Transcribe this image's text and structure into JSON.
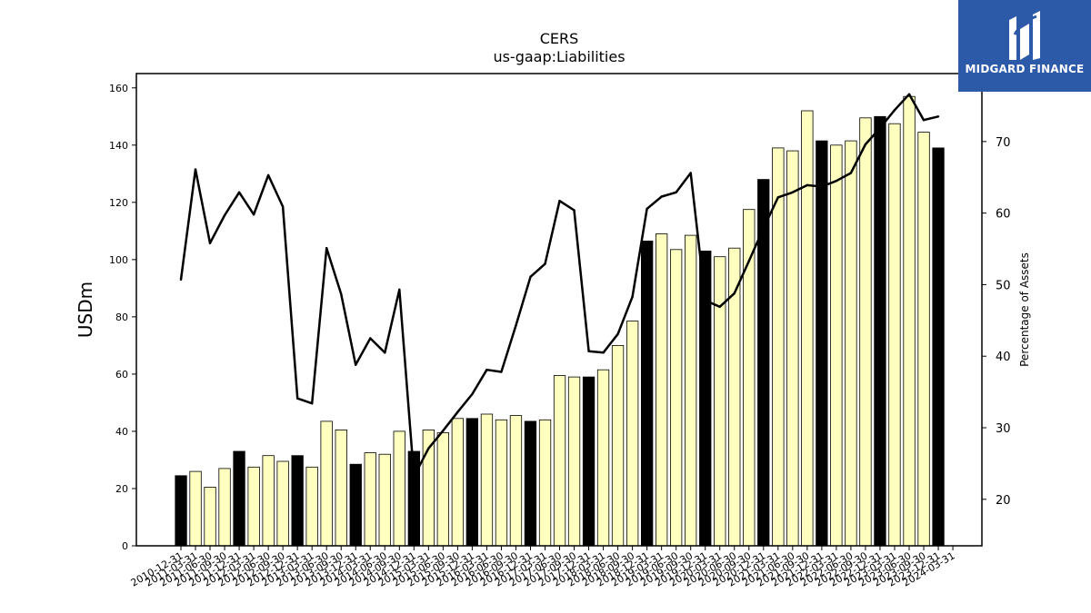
{
  "brand": {
    "name": "MIDGARD FINANCE",
    "logo_icon": "midgard-m-logo-icon",
    "background": "#2d5aa8"
  },
  "chart_data": {
    "type": "bar",
    "title": "CERS",
    "subtitle": "us-gaap:Liabilities",
    "ylabel": "USDm",
    "y2label": "Percentage of Assets",
    "ylim": [
      0,
      165
    ],
    "y2lim": [
      13.5,
      79.5
    ],
    "yticks": [
      0,
      20,
      40,
      60,
      80,
      100,
      120,
      140,
      160
    ],
    "y2ticks": [
      20,
      30,
      40,
      50,
      60,
      70
    ],
    "grid": false,
    "categories": [
      "2010-12-31",
      "2011-03-31",
      "2011-06-30",
      "2011-09-30",
      "2011-12-31",
      "2012-03-31",
      "2012-06-30",
      "2012-09-30",
      "2012-12-31",
      "2013-03-31",
      "2013-06-30",
      "2013-09-30",
      "2013-12-31",
      "2014-03-31",
      "2014-06-30",
      "2014-09-30",
      "2014-12-31",
      "2015-03-31",
      "2015-06-30",
      "2015-09-30",
      "2015-12-31",
      "2016-03-31",
      "2016-06-30",
      "2016-09-30",
      "2016-12-31",
      "2017-03-31",
      "2017-06-30",
      "2017-09-30",
      "2017-12-31",
      "2018-03-31",
      "2018-06-30",
      "2018-09-30",
      "2018-12-31",
      "2019-03-31",
      "2019-06-30",
      "2019-09-30",
      "2019-12-31",
      "2020-03-31",
      "2020-06-30",
      "2020-09-30",
      "2020-12-31",
      "2021-03-31",
      "2021-06-30",
      "2021-09-30",
      "2021-12-31",
      "2022-03-31",
      "2022-06-30",
      "2022-09-30",
      "2022-12-31",
      "2023-03-31",
      "2023-06-30",
      "2023-09-30",
      "2023-12-31",
      "2024-03-31"
    ],
    "series": [
      {
        "type": "bar",
        "axis": "left",
        "values": [
          24.5,
          26,
          20.5,
          27,
          33,
          27.5,
          31.5,
          29.5,
          31.5,
          27.5,
          43.5,
          40.5,
          28.5,
          32.5,
          32,
          40,
          33,
          40.5,
          39.5,
          44.5,
          44.5,
          46,
          44,
          45.5,
          43.5,
          44,
          59.5,
          59,
          59,
          61.5,
          70,
          78.5,
          106.5,
          109,
          103.5,
          108.5,
          103,
          101,
          104,
          117.5,
          128,
          139,
          138,
          152,
          141.5,
          140,
          141.5,
          149.5,
          150,
          147.5,
          157,
          144.5,
          139,
          null
        ],
        "year_end_color": "#000000",
        "other_color": "#ffffc0"
      },
      {
        "type": "line",
        "axis": "right",
        "color": "#000000",
        "values": [
          50.7,
          66.1,
          55.8,
          59.7,
          62.9,
          59.8,
          65.3,
          60.9,
          34.1,
          33.4,
          55.1,
          48.7,
          38.8,
          42.5,
          40.5,
          49.3,
          23.2,
          27.1,
          29.6,
          32.2,
          34.7,
          38.1,
          37.8,
          44.3,
          51.1,
          52.9,
          61.7,
          60.4,
          40.7,
          40.5,
          43.1,
          48.3,
          60.6,
          62.3,
          62.9,
          65.6,
          47.8,
          46.9,
          48.8,
          53.3,
          57.9,
          62.2,
          62.9,
          63.9,
          63.7,
          64.5,
          65.6,
          69.6,
          71.9,
          74.4,
          76.6,
          73.0,
          73.5,
          null
        ]
      }
    ]
  }
}
